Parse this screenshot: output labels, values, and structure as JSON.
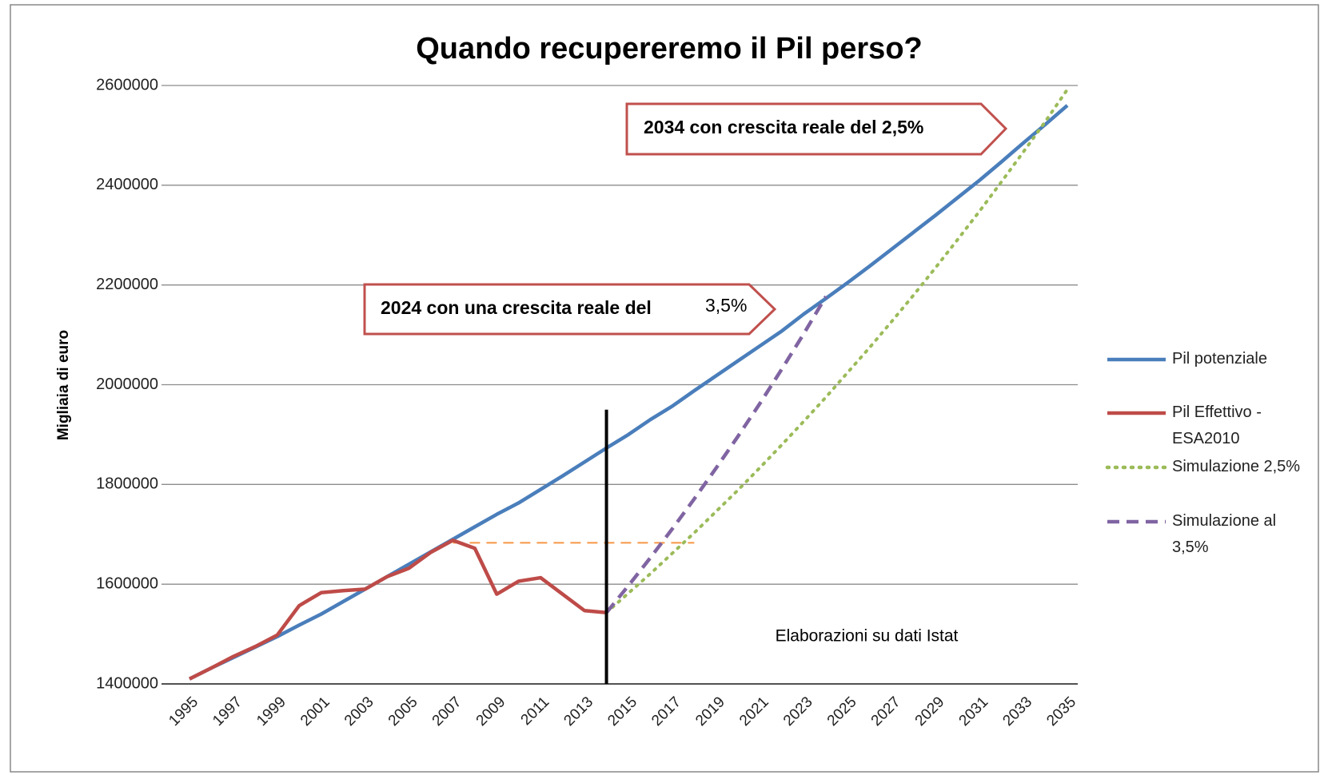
{
  "chart_data": {
    "type": "line",
    "title": "Quando recupereremo il Pil perso?",
    "y_label": "Migliaia di euro",
    "source_note": "Elaborazioni su dati Istat",
    "x": [
      1995,
      1996,
      1997,
      1998,
      1999,
      2000,
      2001,
      2002,
      2003,
      2004,
      2005,
      2006,
      2007,
      2008,
      2009,
      2010,
      2011,
      2012,
      2013,
      2014,
      2015,
      2016,
      2017,
      2018,
      2019,
      2020,
      2021,
      2022,
      2023,
      2024,
      2025,
      2026,
      2027,
      2028,
      2029,
      2030,
      2031,
      2032,
      2033,
      2034,
      2035
    ],
    "xlim": [
      1995,
      2035
    ],
    "xticks": [
      1995,
      1997,
      1999,
      2001,
      2003,
      2005,
      2007,
      2009,
      2011,
      2013,
      2015,
      2017,
      2019,
      2021,
      2023,
      2025,
      2027,
      2029,
      2031,
      2033,
      2035
    ],
    "ylim": [
      1400000,
      2600000
    ],
    "yticks": [
      1400000,
      1600000,
      1800000,
      2000000,
      2200000,
      2400000,
      2600000
    ],
    "grid": true,
    "legend": "right",
    "series": [
      {
        "name": "Pil potenziale",
        "color": "#4a7ebb",
        "style": "solid",
        "values": [
          1410000,
          1432000,
          1453000,
          1474000,
          1495000,
          1518000,
          1540000,
          1565000,
          1590000,
          1615000,
          1640000,
          1665000,
          1690000,
          1715000,
          1740000,
          1763000,
          1790000,
          1817000,
          1845000,
          1873000,
          1900000,
          1930000,
          1957000,
          1988000,
          2018000,
          2048000,
          2078000,
          2108000,
          2142000,
          2173000,
          2205000,
          2238000,
          2272000,
          2306000,
          2340000,
          2375000,
          2410000,
          2447000,
          2485000,
          2522000,
          2560000
        ]
      },
      {
        "name": "Pil Effettivo - ESA2010",
        "color": "#be4b48",
        "style": "solid",
        "values": [
          1410000,
          1432000,
          1455000,
          1475000,
          1498000,
          1557000,
          1583000,
          1587000,
          1590000,
          1615000,
          1632000,
          1664000,
          1688000,
          1672000,
          1580000,
          1606000,
          1613000,
          1580000,
          1547000,
          1543000,
          null,
          null,
          null,
          null,
          null,
          null,
          null,
          null,
          null,
          null,
          null,
          null,
          null,
          null,
          null,
          null,
          null,
          null,
          null,
          null,
          null
        ]
      },
      {
        "name": "Simulazione 2,5%",
        "color": "#9bbb59",
        "style": "dotted",
        "values": [
          null,
          null,
          null,
          null,
          null,
          null,
          null,
          null,
          null,
          null,
          null,
          null,
          null,
          null,
          null,
          null,
          null,
          null,
          null,
          1543000,
          1582000,
          1621000,
          1662000,
          1703000,
          1746000,
          1789000,
          1834000,
          1880000,
          1927000,
          1975000,
          2025000,
          2075000,
          2127000,
          2180000,
          2235000,
          2291000,
          2348000,
          2407000,
          2467000,
          2528000,
          2592000
        ]
      },
      {
        "name": "Simulazione al 3,5%",
        "color": "#8064a2",
        "style": "dashed",
        "values": [
          null,
          null,
          null,
          null,
          null,
          null,
          null,
          null,
          null,
          null,
          null,
          null,
          null,
          null,
          null,
          null,
          null,
          null,
          null,
          1543000,
          1597000,
          1653000,
          1711000,
          1771000,
          1833000,
          1897000,
          1963000,
          2032000,
          2103000,
          2177000,
          null,
          null,
          null,
          null,
          null,
          null,
          null,
          null,
          null,
          null,
          null
        ]
      }
    ],
    "reference_line": {
      "value": 1683000,
      "from": 2007,
      "to": 2018,
      "color": "#f79646"
    },
    "divider": {
      "x": 2014,
      "from": 1400000,
      "to": 1950000,
      "color": "#000000"
    },
    "callouts": [
      {
        "text": "2034 con crescita reale del  2,5%"
      },
      {
        "text": "2024 con una crescita reale del",
        "suffix": "3,5%"
      }
    ]
  }
}
